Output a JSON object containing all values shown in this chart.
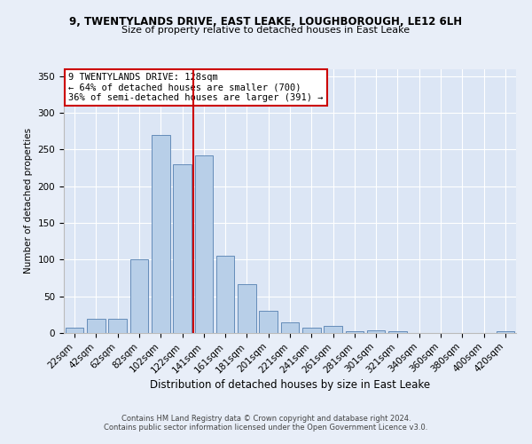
{
  "title1": "9, TWENTYLANDS DRIVE, EAST LEAKE, LOUGHBOROUGH, LE12 6LH",
  "title2": "Size of property relative to detached houses in East Leake",
  "xlabel": "Distribution of detached houses by size in East Leake",
  "ylabel": "Number of detached properties",
  "categories": [
    "22sqm",
    "42sqm",
    "62sqm",
    "82sqm",
    "102sqm",
    "122sqm",
    "141sqm",
    "161sqm",
    "181sqm",
    "201sqm",
    "221sqm",
    "241sqm",
    "261sqm",
    "281sqm",
    "301sqm",
    "321sqm",
    "340sqm",
    "360sqm",
    "380sqm",
    "400sqm",
    "420sqm"
  ],
  "values": [
    7,
    19,
    19,
    100,
    270,
    230,
    242,
    105,
    67,
    30,
    15,
    7,
    10,
    3,
    4,
    2,
    0,
    0,
    0,
    0,
    2
  ],
  "bar_color": "#b8cfe8",
  "bar_edge_color": "#5580b0",
  "vline_color": "#cc0000",
  "annotation_text": "9 TWENTYLANDS DRIVE: 128sqm\n← 64% of detached houses are smaller (700)\n36% of semi-detached houses are larger (391) →",
  "annotation_box_color": "#ffffff",
  "annotation_box_edge": "#cc0000",
  "ylim": [
    0,
    360
  ],
  "yticks": [
    0,
    50,
    100,
    150,
    200,
    250,
    300,
    350
  ],
  "footnote1": "Contains HM Land Registry data © Crown copyright and database right 2024.",
  "footnote2": "Contains public sector information licensed under the Open Government Licence v3.0.",
  "bg_color": "#e8eef8",
  "plot_bg_color": "#dce6f5",
  "title1_fontsize": 8.5,
  "title2_fontsize": 8.0,
  "xlabel_fontsize": 8.5,
  "ylabel_fontsize": 7.5,
  "tick_fontsize": 7.5,
  "annot_fontsize": 7.5,
  "footnote_fontsize": 6.0
}
